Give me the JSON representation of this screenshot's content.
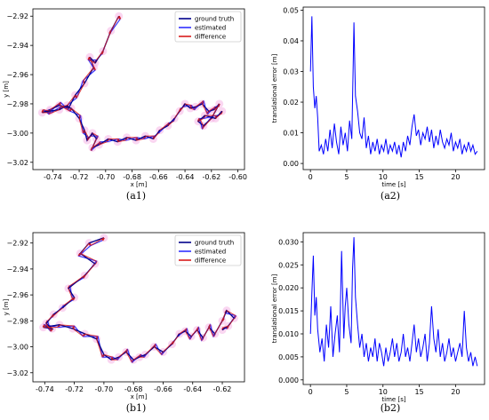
{
  "chart_data": [
    {
      "id": "a1",
      "type": "line",
      "caption": "(a1)",
      "xlabel": "x [m]",
      "ylabel": "y [m]",
      "xlim": [
        -0.755,
        -0.595
      ],
      "ylim": [
        -3.025,
        -2.915
      ],
      "xticks": [
        "-0.74",
        "-0.72",
        "-0.70",
        "-0.68",
        "-0.66",
        "-0.64",
        "-0.62",
        "-0.60"
      ],
      "xtick_values": [
        -0.74,
        -0.72,
        -0.7,
        -0.68,
        -0.66,
        -0.64,
        -0.62,
        -0.6
      ],
      "yticks": [
        "−2.92",
        "−2.94",
        "−2.96",
        "−2.98",
        "−3.00",
        "−3.02"
      ],
      "ytick_values": [
        -2.92,
        -2.94,
        -2.96,
        -2.98,
        -3.0,
        -3.02
      ],
      "legend": [
        "ground truth",
        "estimated",
        "difference"
      ],
      "legend_loc": "top-right",
      "colors": {
        "ground_truth": "#00008b",
        "estimated": "#3030ff",
        "difference": "#d81b1b"
      },
      "series": [
        {
          "name": "ground truth",
          "x": [
            -0.69,
            -0.696,
            -0.702,
            -0.708,
            -0.712,
            -0.709,
            -0.716,
            -0.723,
            -0.728,
            -0.729,
            -0.735,
            -0.742,
            -0.748,
            -0.742,
            -0.735,
            -0.726,
            -0.72,
            -0.716,
            -0.714,
            -0.71,
            -0.707,
            -0.71,
            -0.705,
            -0.698,
            -0.691,
            -0.684,
            -0.677,
            -0.67,
            -0.664,
            -0.659,
            -0.653,
            -0.648,
            -0.644,
            -0.64,
            -0.636,
            -0.632,
            -0.627,
            -0.622,
            -0.618,
            -0.614,
            -0.62,
            -0.626,
            -0.63,
            -0.625,
            -0.617,
            -0.612
          ],
          "y": [
            -2.92,
            -2.93,
            -2.944,
            -2.952,
            -2.948,
            -2.955,
            -2.966,
            -2.974,
            -2.983,
            -2.981,
            -2.984,
            -2.985,
            -2.986,
            -2.984,
            -2.981,
            -2.983,
            -2.99,
            -2.998,
            -3.005,
            -3.0,
            -3.004,
            -3.01,
            -3.008,
            -3.004,
            -3.006,
            -3.003,
            -3.005,
            -3.002,
            -3.004,
            -2.998,
            -2.995,
            -2.99,
            -2.985,
            -2.98,
            -2.983,
            -2.982,
            -2.98,
            -2.985,
            -2.984,
            -2.98,
            -2.99,
            -2.995,
            -2.992,
            -2.988,
            -2.99,
            -2.985
          ]
        },
        {
          "name": "estimated",
          "x": [
            -0.689,
            -0.697,
            -0.703,
            -0.707,
            -0.713,
            -0.708,
            -0.717,
            -0.722,
            -0.729,
            -0.73,
            -0.734,
            -0.743,
            -0.747,
            -0.743,
            -0.734,
            -0.727,
            -0.719,
            -0.717,
            -0.713,
            -0.711,
            -0.706,
            -0.711,
            -0.704,
            -0.699,
            -0.69,
            -0.685,
            -0.676,
            -0.671,
            -0.663,
            -0.66,
            -0.652,
            -0.649,
            -0.643,
            -0.641,
            -0.635,
            -0.633,
            -0.626,
            -0.623,
            -0.617,
            -0.615,
            -0.619,
            -0.627,
            -0.629,
            -0.626,
            -0.616,
            -0.613
          ],
          "y": [
            -2.922,
            -2.932,
            -2.946,
            -2.95,
            -2.95,
            -2.957,
            -2.964,
            -2.976,
            -2.981,
            -2.983,
            -2.982,
            -2.987,
            -2.984,
            -2.986,
            -2.979,
            -2.985,
            -2.988,
            -3.0,
            -3.003,
            -3.002,
            -3.002,
            -3.012,
            -3.006,
            -3.006,
            -3.004,
            -3.005,
            -3.003,
            -3.004,
            -3.002,
            -3.0,
            -2.993,
            -2.992,
            -2.983,
            -2.982,
            -2.981,
            -2.984,
            -2.978,
            -2.987,
            -2.982,
            -2.982,
            -2.988,
            -2.997,
            -2.99,
            -2.99,
            -2.988,
            -2.987
          ]
        }
      ]
    },
    {
      "id": "a2",
      "type": "line",
      "caption": "(a2)",
      "xlabel": "time [s]",
      "ylabel": "translational error [m]",
      "xlim": [
        -1,
        24
      ],
      "ylim": [
        -0.002,
        0.051
      ],
      "xticks": [
        "0",
        "5",
        "10",
        "15",
        "20"
      ],
      "xtick_values": [
        0,
        5,
        10,
        15,
        20
      ],
      "yticks": [
        "0.00",
        "0.01",
        "0.02",
        "0.03",
        "0.04",
        "0.05"
      ],
      "ytick_values": [
        0.0,
        0.01,
        0.02,
        0.03,
        0.04,
        0.05
      ],
      "color": "#0000ff",
      "t": [
        0.0,
        0.2,
        0.4,
        0.6,
        0.8,
        1.0,
        1.2,
        1.5,
        1.8,
        2.1,
        2.4,
        2.7,
        3.0,
        3.3,
        3.6,
        3.9,
        4.2,
        4.5,
        4.8,
        5.1,
        5.4,
        5.7,
        5.9,
        6.0,
        6.2,
        6.5,
        6.8,
        7.1,
        7.4,
        7.7,
        8.0,
        8.3,
        8.6,
        8.9,
        9.2,
        9.5,
        9.8,
        10.1,
        10.4,
        10.7,
        11.0,
        11.3,
        11.6,
        11.9,
        12.2,
        12.5,
        12.8,
        13.1,
        13.4,
        13.7,
        14.0,
        14.3,
        14.6,
        14.9,
        15.2,
        15.5,
        15.8,
        16.1,
        16.4,
        16.7,
        17.0,
        17.3,
        17.6,
        17.9,
        18.2,
        18.5,
        18.8,
        19.1,
        19.4,
        19.7,
        20.0,
        20.3,
        20.6,
        20.9,
        21.2,
        21.5,
        21.8,
        22.1,
        22.4,
        22.7,
        23.0
      ],
      "error": [
        0.03,
        0.048,
        0.025,
        0.018,
        0.022,
        0.015,
        0.004,
        0.006,
        0.003,
        0.008,
        0.004,
        0.011,
        0.005,
        0.013,
        0.007,
        0.003,
        0.012,
        0.006,
        0.01,
        0.004,
        0.014,
        0.008,
        0.033,
        0.046,
        0.022,
        0.017,
        0.01,
        0.008,
        0.015,
        0.005,
        0.009,
        0.003,
        0.007,
        0.004,
        0.008,
        0.003,
        0.006,
        0.004,
        0.008,
        0.003,
        0.006,
        0.004,
        0.007,
        0.003,
        0.006,
        0.002,
        0.007,
        0.004,
        0.009,
        0.006,
        0.012,
        0.016,
        0.009,
        0.011,
        0.006,
        0.01,
        0.008,
        0.012,
        0.007,
        0.011,
        0.005,
        0.009,
        0.006,
        0.011,
        0.007,
        0.005,
        0.008,
        0.006,
        0.01,
        0.004,
        0.007,
        0.005,
        0.008,
        0.003,
        0.006,
        0.004,
        0.007,
        0.004,
        0.006,
        0.003,
        0.004
      ]
    },
    {
      "id": "b1",
      "type": "line",
      "caption": "(b1)",
      "xlabel": "x [m]",
      "ylabel": "y [m]",
      "xlim": [
        -0.748,
        -0.605
      ],
      "ylim": [
        -3.027,
        -2.912
      ],
      "xticks": [
        "-0.74",
        "-0.72",
        "-0.70",
        "-0.68",
        "-0.66",
        "-0.64",
        "-0.62"
      ],
      "xtick_values": [
        -0.74,
        -0.72,
        -0.7,
        -0.68,
        -0.66,
        -0.64,
        -0.62
      ],
      "yticks": [
        "−2.92",
        "−2.94",
        "−2.96",
        "−2.98",
        "−3.00",
        "−3.02"
      ],
      "ytick_values": [
        -2.92,
        -2.94,
        -2.96,
        -2.98,
        -3.0,
        -3.02
      ],
      "legend": [
        "ground truth",
        "estimated",
        "difference"
      ],
      "legend_loc": "top-right",
      "colors": {
        "ground_truth": "#00008b",
        "estimated": "#3030ff",
        "difference": "#d81b1b"
      },
      "series": [
        {
          "name": "ground truth",
          "x": [
            -0.7,
            -0.71,
            -0.716,
            -0.706,
            -0.713,
            -0.724,
            -0.72,
            -0.728,
            -0.734,
            -0.739,
            -0.735,
            -0.741,
            -0.73,
            -0.721,
            -0.713,
            -0.705,
            -0.7,
            -0.695,
            -0.69,
            -0.685,
            -0.68,
            -0.676,
            -0.672,
            -0.666,
            -0.66,
            -0.654,
            -0.649,
            -0.645,
            -0.641,
            -0.637,
            -0.633,
            -0.629,
            -0.625,
            -0.62,
            -0.617,
            -0.612,
            -0.616,
            -0.62
          ],
          "y": [
            -2.916,
            -2.92,
            -2.928,
            -2.936,
            -2.945,
            -2.955,
            -2.962,
            -2.97,
            -2.975,
            -2.982,
            -2.986,
            -2.985,
            -2.983,
            -2.986,
            -2.99,
            -2.994,
            -3.006,
            -3.01,
            -3.008,
            -3.004,
            -3.01,
            -3.008,
            -3.006,
            -3.0,
            -3.004,
            -2.998,
            -2.99,
            -2.988,
            -2.992,
            -2.987,
            -2.993,
            -2.985,
            -2.99,
            -2.98,
            -2.972,
            -2.978,
            -2.984,
            -2.987
          ]
        },
        {
          "name": "estimated",
          "x": [
            -0.701,
            -0.709,
            -0.717,
            -0.705,
            -0.714,
            -0.723,
            -0.721,
            -0.727,
            -0.735,
            -0.738,
            -0.736,
            -0.74,
            -0.731,
            -0.72,
            -0.714,
            -0.704,
            -0.701,
            -0.694,
            -0.691,
            -0.684,
            -0.681,
            -0.675,
            -0.673,
            -0.665,
            -0.661,
            -0.653,
            -0.65,
            -0.644,
            -0.642,
            -0.636,
            -0.634,
            -0.628,
            -0.626,
            -0.619,
            -0.618,
            -0.611,
            -0.617,
            -0.619
          ],
          "y": [
            -2.918,
            -2.922,
            -2.93,
            -2.934,
            -2.947,
            -2.953,
            -2.964,
            -2.968,
            -2.977,
            -2.98,
            -2.988,
            -2.983,
            -2.985,
            -2.984,
            -2.992,
            -2.992,
            -3.008,
            -3.008,
            -3.01,
            -3.002,
            -3.012,
            -3.006,
            -3.008,
            -2.998,
            -3.006,
            -2.996,
            -2.992,
            -2.986,
            -2.994,
            -2.985,
            -2.995,
            -2.983,
            -2.992,
            -2.978,
            -2.974,
            -2.976,
            -2.986,
            -2.985
          ]
        }
      ]
    },
    {
      "id": "b2",
      "type": "line",
      "caption": "(b2)",
      "xlabel": "time [s]",
      "ylabel": "translational error [m]",
      "xlim": [
        -1,
        24
      ],
      "ylim": [
        -0.001,
        0.032
      ],
      "xticks": [
        "0",
        "5",
        "10",
        "15",
        "20"
      ],
      "xtick_values": [
        0,
        5,
        10,
        15,
        20
      ],
      "yticks": [
        "0.000",
        "0.005",
        "0.010",
        "0.015",
        "0.020",
        "0.025",
        "0.030"
      ],
      "ytick_values": [
        0.0,
        0.005,
        0.01,
        0.015,
        0.02,
        0.025,
        0.03
      ],
      "color": "#0000ff",
      "t": [
        0.0,
        0.2,
        0.4,
        0.6,
        0.8,
        1.0,
        1.3,
        1.6,
        1.9,
        2.2,
        2.5,
        2.8,
        3.1,
        3.4,
        3.7,
        4.0,
        4.3,
        4.6,
        4.8,
        5.0,
        5.3,
        5.6,
        5.8,
        6.0,
        6.2,
        6.5,
        6.8,
        7.1,
        7.4,
        7.7,
        8.0,
        8.3,
        8.6,
        8.9,
        9.2,
        9.5,
        9.8,
        10.1,
        10.4,
        10.7,
        11.0,
        11.3,
        11.6,
        11.9,
        12.2,
        12.5,
        12.8,
        13.1,
        13.4,
        13.7,
        14.0,
        14.3,
        14.6,
        14.9,
        15.2,
        15.5,
        15.8,
        16.1,
        16.4,
        16.7,
        17.0,
        17.3,
        17.6,
        17.9,
        18.2,
        18.5,
        18.8,
        19.1,
        19.4,
        19.7,
        20.0,
        20.3,
        20.6,
        20.9,
        21.2,
        21.5,
        21.8,
        22.1,
        22.4,
        22.7,
        23.0
      ],
      "error": [
        0.01,
        0.019,
        0.027,
        0.014,
        0.018,
        0.011,
        0.006,
        0.009,
        0.004,
        0.012,
        0.007,
        0.016,
        0.005,
        0.01,
        0.014,
        0.006,
        0.028,
        0.009,
        0.016,
        0.02,
        0.012,
        0.008,
        0.024,
        0.031,
        0.018,
        0.012,
        0.007,
        0.01,
        0.005,
        0.008,
        0.004,
        0.007,
        0.005,
        0.009,
        0.004,
        0.008,
        0.006,
        0.003,
        0.007,
        0.004,
        0.006,
        0.009,
        0.005,
        0.008,
        0.004,
        0.006,
        0.01,
        0.005,
        0.007,
        0.004,
        0.008,
        0.012,
        0.006,
        0.009,
        0.005,
        0.007,
        0.01,
        0.004,
        0.008,
        0.016,
        0.009,
        0.006,
        0.011,
        0.005,
        0.008,
        0.004,
        0.006,
        0.009,
        0.005,
        0.007,
        0.004,
        0.006,
        0.008,
        0.005,
        0.015,
        0.007,
        0.004,
        0.006,
        0.003,
        0.005,
        0.003
      ]
    }
  ]
}
